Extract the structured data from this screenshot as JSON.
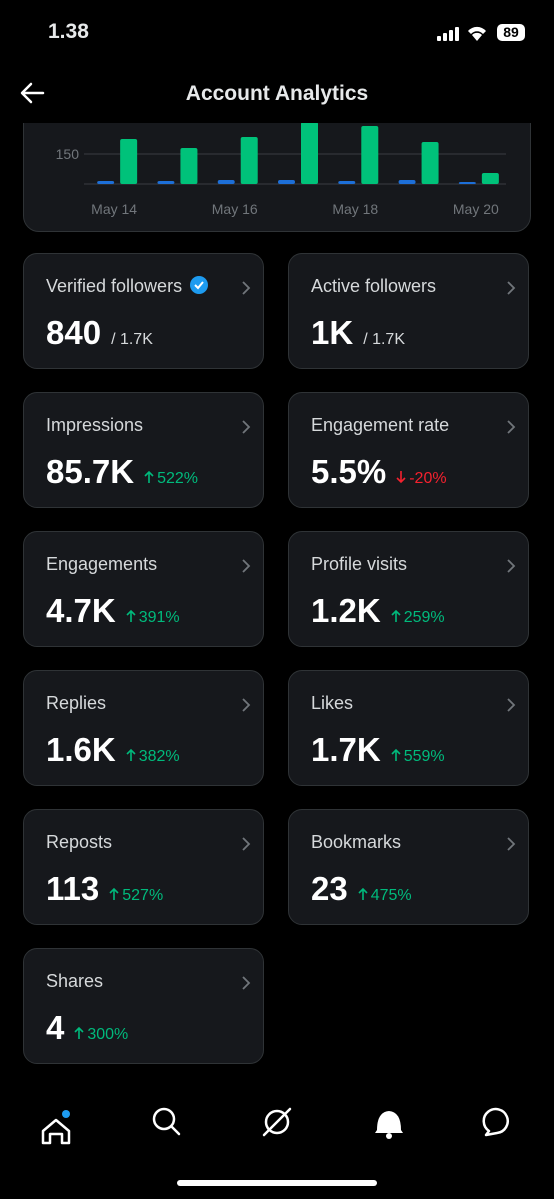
{
  "status_bar": {
    "time": "1.38",
    "battery": "89"
  },
  "header": {
    "title": "Account Analytics"
  },
  "chart_data": {
    "type": "bar",
    "categories": [
      "May 14",
      null,
      "May 16",
      null,
      "May 18",
      null,
      "May 20"
    ],
    "series": [
      {
        "color": "#1d6fd8",
        "values": [
          15,
          15,
          20,
          20,
          15,
          20,
          10
        ]
      },
      {
        "color": "#00c27a",
        "values": [
          225,
          180,
          235,
          310,
          290,
          210,
          55
        ]
      }
    ],
    "ylim": [
      0,
      300
    ],
    "yticks": [
      150
    ],
    "grid": true
  },
  "cards": [
    {
      "label": "Verified followers",
      "value": "840",
      "total": "/ 1.7K"
    },
    {
      "label": "Active followers",
      "value": "1K",
      "total": "/ 1.7K"
    },
    {
      "label": "Impressions",
      "value": "85.7K",
      "change": "522%"
    },
    {
      "label": "Engagement rate",
      "value": "5.5%",
      "change": "-20%"
    },
    {
      "label": "Engagements",
      "value": "4.7K",
      "change": "391%"
    },
    {
      "label": "Profile visits",
      "value": "1.2K",
      "change": "259%"
    },
    {
      "label": "Replies",
      "value": "1.6K",
      "change": "382%"
    },
    {
      "label": "Likes",
      "value": "1.7K",
      "change": "559%"
    },
    {
      "label": "Reposts",
      "value": "113",
      "change": "527%"
    },
    {
      "label": "Bookmarks",
      "value": "23",
      "change": "475%"
    },
    {
      "label": "Shares",
      "value": "4",
      "change": "300%"
    }
  ]
}
